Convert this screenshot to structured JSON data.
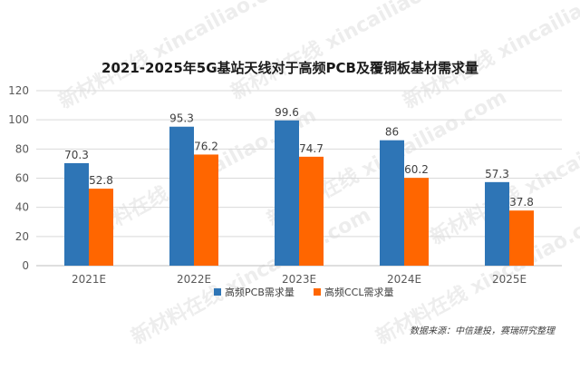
{
  "chart_data": {
    "type": "bar",
    "title": "2021-2025年5G基站天线对于高频PCB及覆铜板基材需求量",
    "xlabel": "",
    "ylabel": "",
    "categories": [
      "2021E",
      "2022E",
      "2023E",
      "2024E",
      "2025E"
    ],
    "series": [
      {
        "name": "高频PCB需求量",
        "values": [
          70.3,
          95.3,
          99.6,
          86,
          57.3
        ],
        "color": "#2e75b6"
      },
      {
        "name": "高频CCL需求量",
        "values": [
          52.8,
          76.2,
          74.7,
          60.2,
          37.8
        ],
        "color": "#ff6600"
      }
    ],
    "ylim": [
      0,
      120
    ],
    "yticks": [
      0,
      20,
      40,
      60,
      80,
      100,
      120
    ],
    "grid": true,
    "legend": "bottom-center"
  },
  "source_note": "数据来源：中信建投，赛瑞研究整理",
  "watermark": "新材料在线 xincailiao.com"
}
